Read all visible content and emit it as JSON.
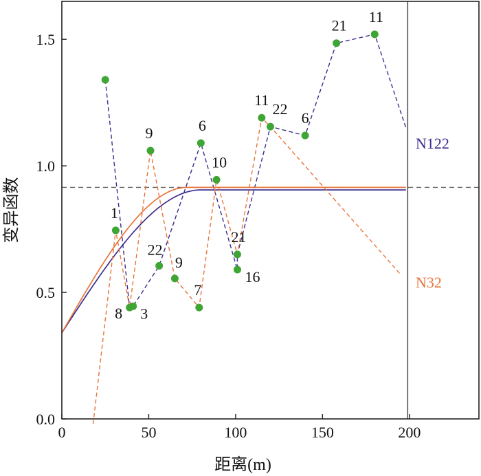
{
  "chart_data": {
    "type": "line",
    "title": "",
    "xlabel": "距离(m)",
    "ylabel": "变异函数",
    "xlim": [
      0,
      240
    ],
    "ylim": [
      0,
      1.65
    ],
    "x_ticks": [
      "0",
      "50",
      "100",
      "150",
      "200"
    ],
    "y_ticks": [
      "0.0",
      "0.5",
      "1.0",
      "1.5"
    ],
    "x_tick_values": [
      0,
      50,
      100,
      150,
      200
    ],
    "y_tick_values": [
      0,
      0.5,
      1.0,
      1.5
    ],
    "sill_line": {
      "y": 0.915,
      "style": "dashed",
      "color": "#666666"
    },
    "vertical_line": {
      "x": 199,
      "color": "#555555"
    },
    "points": [
      {
        "x": 25,
        "y": 1.34,
        "label": ""
      },
      {
        "x": 31,
        "y": 0.745,
        "label": "1"
      },
      {
        "x": 39,
        "y": 0.44,
        "label": "8"
      },
      {
        "x": 41,
        "y": 0.445,
        "label": "3"
      },
      {
        "x": 51,
        "y": 1.06,
        "label": "9"
      },
      {
        "x": 56,
        "y": 0.605,
        "label": "22"
      },
      {
        "x": 65,
        "y": 0.555,
        "label": "9"
      },
      {
        "x": 79,
        "y": 0.44,
        "label": "7"
      },
      {
        "x": 80,
        "y": 1.09,
        "label": "6"
      },
      {
        "x": 89,
        "y": 0.945,
        "label": "10"
      },
      {
        "x": 101,
        "y": 0.65,
        "label": "21"
      },
      {
        "x": 101,
        "y": 0.59,
        "label": "16"
      },
      {
        "x": 115,
        "y": 1.19,
        "label": "11"
      },
      {
        "x": 120,
        "y": 1.155,
        "label": "22"
      },
      {
        "x": 140,
        "y": 1.12,
        "label": "6"
      },
      {
        "x": 158,
        "y": 1.485,
        "label": "21"
      },
      {
        "x": 180,
        "y": 1.52,
        "label": "11"
      }
    ],
    "series": [
      {
        "name": "N122",
        "color": "#3a2d8c",
        "dashed_path": [
          [
            25,
            1.34
          ],
          [
            39,
            0.44
          ],
          [
            41,
            0.445
          ],
          [
            56,
            0.605
          ],
          [
            80,
            1.09
          ],
          [
            101,
            0.59
          ],
          [
            101,
            0.65
          ],
          [
            120,
            1.155
          ],
          [
            140,
            1.12
          ],
          [
            158,
            1.485
          ],
          [
            180,
            1.52
          ],
          [
            198,
            1.15
          ]
        ],
        "model_curve": {
          "nugget": 0.34,
          "sill": 0.905,
          "range": 80,
          "x_end": 198
        }
      },
      {
        "name": "N32",
        "color": "#e8743b",
        "dashed_path": [
          [
            18,
            -0.02
          ],
          [
            31,
            0.745
          ],
          [
            39,
            0.44
          ],
          [
            51,
            1.06
          ],
          [
            65,
            0.555
          ],
          [
            79,
            0.44
          ],
          [
            89,
            0.945
          ],
          [
            101,
            0.65
          ],
          [
            115,
            1.19
          ],
          [
            120,
            1.155
          ],
          [
            195,
            0.57
          ]
        ],
        "model_curve": {
          "nugget": 0.34,
          "sill": 0.915,
          "range": 72,
          "x_end": 198
        }
      }
    ],
    "point_color": "#3fa535",
    "grid": false,
    "legend": "inline-right"
  }
}
